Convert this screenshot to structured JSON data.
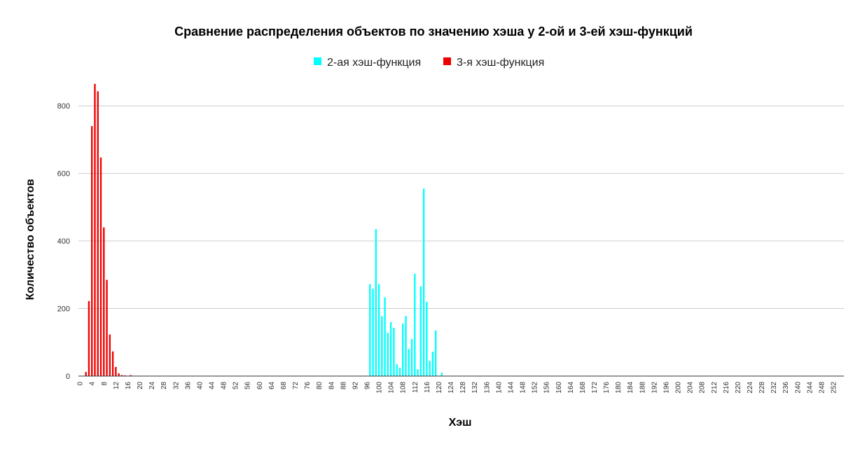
{
  "chart_data": {
    "type": "bar",
    "title": "Сравнение распределения объектов по значению хэша у 2-ой и 3-ей хэш-функций",
    "xlabel": "Хэш",
    "ylabel": "Количество объектов",
    "ylim": [
      0,
      850
    ],
    "yticks": [
      0,
      200,
      400,
      600,
      800
    ],
    "x_range": [
      0,
      255
    ],
    "grid": true,
    "legend_position": "top",
    "series": [
      {
        "name": "2-ая хэш-функция",
        "color": "#00ffff",
        "points": [
          [
            97,
            272
          ],
          [
            98,
            258
          ],
          [
            99,
            435
          ],
          [
            100,
            272
          ],
          [
            101,
            177
          ],
          [
            102,
            233
          ],
          [
            103,
            128
          ],
          [
            104,
            160
          ],
          [
            105,
            143
          ],
          [
            106,
            35
          ],
          [
            107,
            25
          ],
          [
            108,
            155
          ],
          [
            109,
            178
          ],
          [
            110,
            80
          ],
          [
            111,
            110
          ],
          [
            112,
            303
          ],
          [
            113,
            20
          ],
          [
            114,
            265
          ],
          [
            115,
            555
          ],
          [
            116,
            220
          ],
          [
            117,
            45
          ],
          [
            118,
            72
          ],
          [
            119,
            135
          ],
          [
            121,
            10
          ]
        ]
      },
      {
        "name": "3-я хэш-функция",
        "color": "#ee0000",
        "points": [
          [
            2,
            12
          ],
          [
            3,
            222
          ],
          [
            4,
            740
          ],
          [
            5,
            865
          ],
          [
            6,
            843
          ],
          [
            7,
            647
          ],
          [
            8,
            440
          ],
          [
            9,
            285
          ],
          [
            10,
            123
          ],
          [
            11,
            73
          ],
          [
            12,
            27
          ],
          [
            13,
            8
          ],
          [
            14,
            3
          ],
          [
            15,
            2
          ],
          [
            17,
            3
          ]
        ]
      }
    ]
  }
}
